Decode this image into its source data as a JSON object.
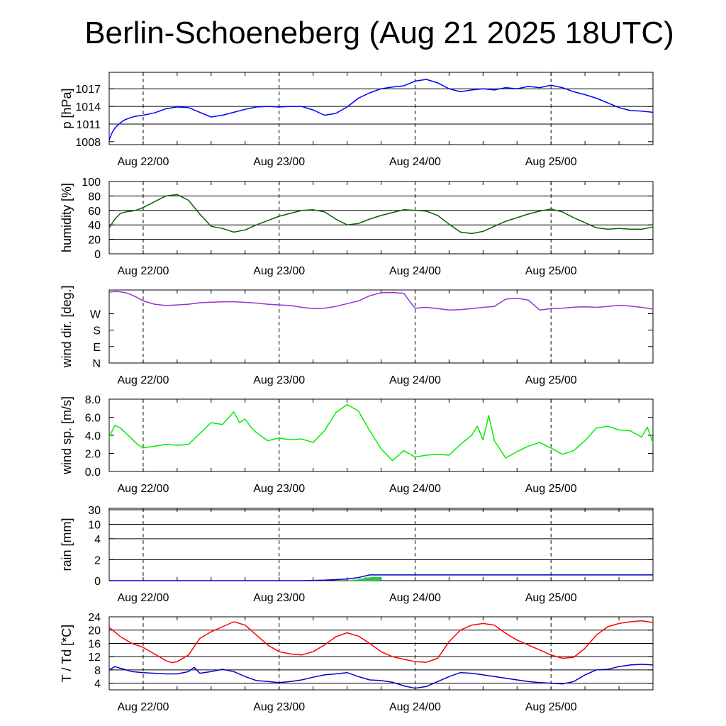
{
  "title": "Berlin-Schoeneberg (Aug 21 2025 18UTC)",
  "x_labels": [
    "Aug 22/00",
    "Aug 23/00",
    "Aug 24/00",
    "Aug 25/00"
  ],
  "chart_data": [
    {
      "type": "line",
      "ylabel": "p [hPa]",
      "ylim": [
        1007.5,
        1019.8
      ],
      "yticks": [
        1008,
        1011,
        1014,
        1017
      ],
      "grid_lines": [
        1011,
        1014,
        1017
      ],
      "x_unit": "hours since first label (Aug 22/00)",
      "series": [
        {
          "color": "#0000ff",
          "x": [
            -6,
            -5.5,
            -5,
            -4.5,
            -4,
            -3.5,
            -2.5,
            -1.5,
            0,
            2,
            4,
            6,
            8,
            10,
            12,
            14,
            16,
            18,
            20,
            22,
            24,
            26,
            28,
            30,
            32,
            34,
            36,
            38,
            40,
            42,
            44,
            46,
            48,
            50,
            52,
            54,
            56,
            58,
            60,
            62,
            64,
            66,
            68,
            70,
            72,
            74,
            76,
            78,
            80,
            82,
            84,
            86,
            88,
            90
          ],
          "y": [
            1008.3,
            1009.5,
            1010.3,
            1010.8,
            1011.2,
            1011.6,
            1012.0,
            1012.3,
            1012.5,
            1012.9,
            1013.6,
            1013.9,
            1013.8,
            1013.0,
            1012.2,
            1012.5,
            1013.0,
            1013.5,
            1013.9,
            1014.0,
            1013.9,
            1014.0,
            1014.0,
            1013.4,
            1012.5,
            1012.8,
            1013.9,
            1015.4,
            1016.3,
            1017.0,
            1017.3,
            1017.5,
            1018.3,
            1018.6,
            1018.0,
            1017.0,
            1016.5,
            1016.8,
            1017.0,
            1016.8,
            1017.2,
            1017.0,
            1017.4,
            1017.2,
            1017.6,
            1017.2,
            1016.5,
            1016.0,
            1015.4,
            1014.6,
            1013.8,
            1013.3,
            1013.2,
            1013.0
          ]
        }
      ]
    },
    {
      "type": "line",
      "ylabel": "humidity [%]",
      "ylim": [
        0,
        100
      ],
      "yticks": [
        0,
        20,
        40,
        60,
        80,
        100
      ],
      "grid_lines": [
        20,
        40,
        60,
        80
      ],
      "series": [
        {
          "color": "#006400",
          "x": [
            -6,
            -5,
            -4,
            -3,
            -2,
            -1,
            0,
            2,
            4,
            6,
            8,
            10,
            12,
            14,
            16,
            18,
            20,
            22,
            24,
            26,
            28,
            30,
            32,
            34,
            36,
            38,
            40,
            42,
            44,
            46,
            48,
            50,
            52,
            54,
            56,
            58,
            60,
            62,
            64,
            66,
            68,
            70,
            72,
            74,
            76,
            78,
            80,
            82,
            84,
            86,
            88,
            90
          ],
          "y": [
            36,
            48,
            56,
            58,
            59,
            61,
            64,
            72,
            80,
            82,
            74,
            55,
            38,
            35,
            30,
            33,
            40,
            46,
            52,
            56,
            60,
            61,
            58,
            48,
            40,
            42,
            48,
            53,
            57,
            61,
            60,
            59,
            53,
            41,
            30,
            28,
            31,
            38,
            45,
            50,
            55,
            59,
            62,
            58,
            50,
            43,
            36,
            34,
            35,
            34,
            34,
            37
          ]
        }
      ]
    },
    {
      "type": "line",
      "ylabel": "wind dir. [deg.]",
      "ylim": [
        0,
        400
      ],
      "yticks": [
        0,
        90,
        180,
        270
      ],
      "tick_labels": [
        "N",
        "E",
        "S",
        "W"
      ],
      "grid_lines": [],
      "series": [
        {
          "color": "#9932cc",
          "x": [
            -6,
            -5,
            -4,
            -3,
            -2,
            -1,
            0,
            2,
            4,
            6,
            8,
            10,
            12,
            14,
            16,
            18,
            20,
            22,
            24,
            26,
            28,
            30,
            32,
            34,
            36,
            38,
            40,
            42,
            44,
            46,
            47,
            48,
            50,
            52,
            54,
            56,
            58,
            60,
            62,
            64,
            66,
            68,
            70,
            72,
            74,
            76,
            78,
            80,
            82,
            84,
            86,
            88,
            90
          ],
          "y": [
            388,
            392,
            390,
            384,
            372,
            358,
            340,
            322,
            315,
            318,
            322,
            330,
            333,
            335,
            336,
            332,
            328,
            322,
            318,
            315,
            305,
            298,
            300,
            310,
            325,
            340,
            368,
            385,
            386,
            382,
            340,
            300,
            305,
            298,
            290,
            292,
            298,
            305,
            310,
            350,
            355,
            345,
            290,
            298,
            300,
            306,
            308,
            305,
            310,
            316,
            312,
            305,
            295
          ]
        }
      ]
    },
    {
      "type": "line",
      "ylabel": "wind sp. [m/s]",
      "ylim": [
        0,
        8
      ],
      "yticks": [
        0,
        2,
        4,
        6,
        8
      ],
      "tick_labels": [
        "0.0",
        "2.0",
        "4.0",
        "6.0",
        "8.0"
      ],
      "grid_lines": [],
      "series": [
        {
          "color": "#00ee00",
          "x": [
            -6,
            -5,
            -4,
            -3,
            -2,
            -1,
            0,
            2,
            4,
            6,
            8,
            10,
            12,
            14,
            16,
            17,
            18,
            19,
            20,
            22,
            24,
            26,
            28,
            30,
            32,
            34,
            36,
            38,
            40,
            42,
            44,
            46,
            48,
            50,
            52,
            54,
            56,
            58,
            59,
            60,
            61,
            62,
            64,
            66,
            68,
            70,
            72,
            74,
            76,
            78,
            80,
            82,
            84,
            86,
            88,
            89,
            90
          ],
          "y": [
            3.8,
            5.1,
            4.8,
            4.2,
            3.6,
            3.0,
            2.6,
            2.8,
            3.0,
            2.9,
            3.0,
            4.2,
            5.4,
            5.2,
            6.6,
            5.4,
            5.8,
            4.9,
            4.3,
            3.4,
            3.7,
            3.5,
            3.6,
            3.2,
            4.5,
            6.5,
            7.4,
            6.7,
            4.5,
            2.5,
            1.2,
            2.3,
            1.6,
            1.8,
            1.9,
            1.8,
            3.0,
            4.0,
            5.0,
            3.5,
            6.2,
            3.4,
            1.5,
            2.2,
            2.8,
            3.2,
            2.6,
            1.9,
            2.3,
            3.4,
            4.8,
            5.0,
            4.6,
            4.5,
            3.8,
            4.9,
            3.2
          ]
        }
      ]
    },
    {
      "type": "area",
      "ylabel": "rain [mm]",
      "ylim": [
        0,
        30
      ],
      "yticks": [
        0,
        2,
        4,
        10,
        30
      ],
      "grid_lines": [
        2,
        4,
        10,
        30
      ],
      "y_scale": "compressed (positions as printed)",
      "series": [
        {
          "type": "line",
          "color": "#0000cd",
          "x": [
            -6,
            28,
            32,
            36,
            38,
            40,
            90
          ],
          "y": [
            0,
            0,
            0.05,
            0.15,
            0.3,
            0.55,
            0.55
          ]
        },
        {
          "type": "bar",
          "color": "#22cc44",
          "x": [
            36,
            37,
            38,
            39,
            40,
            41
          ],
          "y": [
            0.05,
            0.1,
            0.2,
            0.3,
            0.35,
            0.35
          ]
        }
      ]
    },
    {
      "type": "line",
      "ylabel": "T / Td [*C]",
      "ylim": [
        2,
        24
      ],
      "yticks": [
        4,
        8,
        12,
        16,
        20,
        24
      ],
      "grid_lines": [
        4,
        8,
        12,
        16,
        20,
        24
      ],
      "series": [
        {
          "color": "#ff0000",
          "x": [
            -6,
            -4,
            -2,
            0,
            2,
            4,
            5,
            6,
            8,
            10,
            12,
            14,
            16,
            18,
            20,
            22,
            24,
            26,
            28,
            30,
            32,
            34,
            36,
            38,
            40,
            42,
            44,
            46,
            48,
            50,
            52,
            54,
            56,
            58,
            60,
            62,
            64,
            66,
            68,
            70,
            72,
            74,
            76,
            78,
            80,
            82,
            84,
            86,
            88,
            90
          ],
          "y": [
            20.8,
            18.0,
            16.0,
            14.8,
            12.8,
            10.8,
            10.2,
            10.5,
            12.5,
            17.5,
            19.5,
            21.0,
            22.5,
            21.5,
            18.5,
            15.5,
            13.5,
            12.8,
            12.5,
            13.5,
            15.5,
            18.0,
            19.2,
            18.2,
            16.0,
            13.5,
            12.0,
            11.2,
            10.5,
            10.3,
            11.5,
            16.5,
            20.0,
            21.5,
            22.0,
            21.5,
            19.0,
            17.0,
            15.5,
            14.0,
            12.5,
            11.5,
            11.8,
            14.5,
            18.5,
            21.0,
            22.0,
            22.5,
            22.8,
            22.3
          ]
        },
        {
          "color": "#0000cd",
          "x": [
            -6,
            -5,
            -4,
            -3,
            -2,
            0,
            2,
            4,
            6,
            8,
            9,
            10,
            12,
            14,
            16,
            18,
            20,
            22,
            24,
            26,
            28,
            30,
            32,
            34,
            36,
            38,
            40,
            42,
            44,
            46,
            48,
            50,
            52,
            54,
            56,
            58,
            60,
            62,
            64,
            66,
            68,
            70,
            72,
            74,
            76,
            78,
            80,
            82,
            84,
            86,
            88,
            90
          ],
          "y": [
            8.0,
            9.0,
            8.5,
            8.0,
            7.5,
            7.2,
            7.0,
            6.8,
            6.8,
            7.5,
            8.8,
            7.0,
            7.5,
            8.2,
            7.5,
            6.0,
            4.8,
            4.5,
            4.2,
            4.5,
            5.0,
            5.8,
            6.5,
            6.8,
            7.2,
            6.0,
            5.0,
            4.8,
            4.3,
            3.2,
            2.5,
            3.0,
            4.5,
            6.0,
            7.2,
            7.0,
            6.5,
            6.0,
            5.5,
            5.0,
            4.5,
            4.2,
            4.0,
            3.8,
            4.5,
            6.5,
            8.0,
            8.2,
            9.0,
            9.5,
            9.7,
            9.5
          ]
        }
      ]
    }
  ]
}
